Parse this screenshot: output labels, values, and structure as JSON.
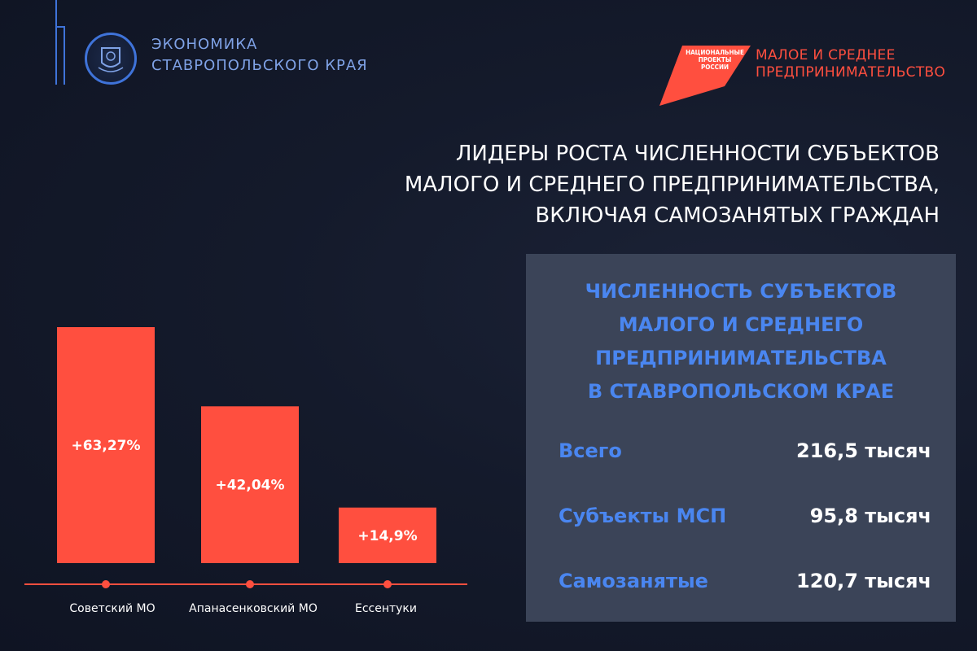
{
  "header": {
    "brand_line1": "ЭКОНОМИКА",
    "brand_line2": "СТАВРОПОЛЬСКОГО КРАЯ",
    "np_logo_line1": "НАЦИОНАЛЬНЫЕ",
    "np_logo_line2": "ПРОЕКТЫ",
    "np_logo_line3": "РОССИИ",
    "project_line1": "МАЛОЕ И СРЕДНЕЕ",
    "project_line2": "ПРЕДПРИНИМАТЕЛЬСТВО"
  },
  "main_title": {
    "line1": "ЛИДЕРЫ РОСТА ЧИСЛЕННОСТИ СУБЪЕКТОВ",
    "line2": "МАЛОГО И СРЕДНЕГО ПРЕДПРИНИМАТЕЛЬСТВА,",
    "line3": "ВКЛЮЧАЯ САМОЗАНЯТЫХ ГРАЖДАН"
  },
  "chart_data": {
    "type": "bar",
    "categories": [
      "Советский МО",
      "Апанасенковский МО",
      "Ессентуки"
    ],
    "values": [
      63.27,
      42.04,
      14.9
    ],
    "data_labels": [
      "+63,27%",
      "+42,04%",
      "+14,9%"
    ],
    "title": "",
    "xlabel": "",
    "ylabel": "",
    "ylim": [
      0,
      70
    ],
    "grid": false,
    "bar_color": "#ff4f3f"
  },
  "stats": {
    "title_line1": "ЧИСЛЕННОСТЬ СУБЪЕКТОВ",
    "title_line2": "МАЛОГО И СРЕДНЕГО",
    "title_line3": "ПРЕДПРИНИМАТЕЛЬСТВА",
    "title_line4": "В СТАВРОПОЛЬСКОМ КРАЕ",
    "rows": [
      {
        "label": "Всего",
        "value": "216,5 тысяч"
      },
      {
        "label": "Субъекты МСП",
        "value": "95,8 тысяч"
      },
      {
        "label": "Самозанятые",
        "value": "120,7 тысяч"
      }
    ]
  },
  "colors": {
    "accent_red": "#ff4f3f",
    "accent_blue": "#4a86f0",
    "background": "#141a2b",
    "panel": "#3b4458"
  }
}
